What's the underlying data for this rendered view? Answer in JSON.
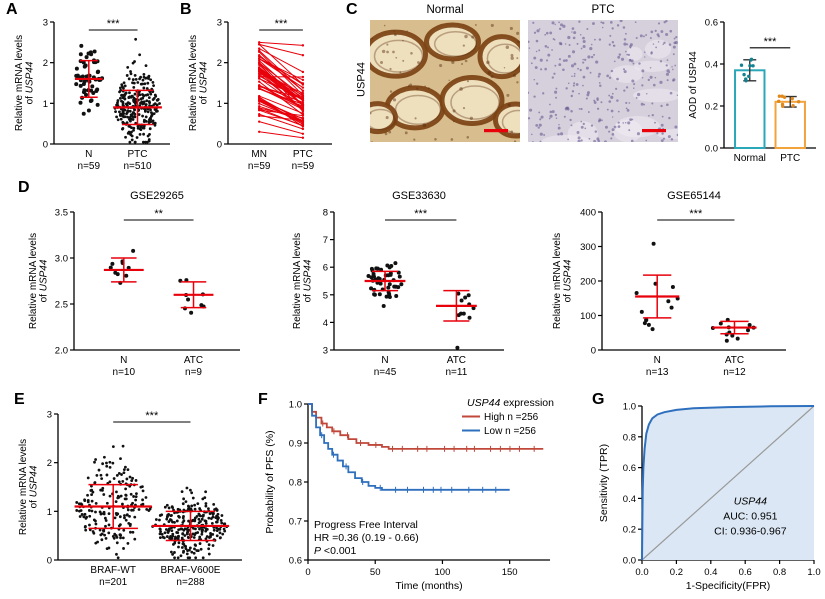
{
  "figure": {
    "panel_labels": {
      "A": "A",
      "B": "B",
      "C": "C",
      "D": "D",
      "E": "E",
      "F": "F",
      "G": "G"
    }
  },
  "panel_c": {
    "image_titles": [
      "Normal",
      "PTC"
    ],
    "row_label": "USP44"
  },
  "ihc": {
    "normal": {
      "bg": "#d8bd8f",
      "lumen": "#eedfbd",
      "stain": "#7c4213",
      "dark": "#55290a",
      "scalebar_color": "#e8000b"
    },
    "ptc": {
      "bg": "#d6cfdc",
      "nucleus": "#6f6495",
      "light": "#f0ebf3",
      "scalebar_color": "#e8000b"
    }
  },
  "chart_data": [
    {
      "id": "A",
      "type": "scatter",
      "seed": 7,
      "ylabel_lines": [
        [
          {
            "t": "Relative mRNA levels"
          }
        ],
        [
          {
            "t": "of "
          },
          {
            "t": "USP44",
            "i": true
          }
        ]
      ],
      "ylim": [
        0,
        3
      ],
      "ytick_values": [
        0,
        1,
        2,
        3
      ],
      "ytick_labels": [
        "0",
        "1",
        "2",
        "3"
      ],
      "significance": "***",
      "dot_color": "#111111",
      "error_color": "#e8000b",
      "groups": [
        {
          "name": "N",
          "n_label": "n=59",
          "mean": 1.6,
          "sd": 0.45,
          "count": 59
        },
        {
          "name": "PTC",
          "n_label": "n=510",
          "mean": 0.9,
          "sd": 0.42,
          "count": 510
        }
      ]
    },
    {
      "id": "B",
      "type": "paired",
      "seed": 11,
      "ylabel_lines": [
        [
          {
            "t": "Relative mRNA levels"
          }
        ],
        [
          {
            "t": "of "
          },
          {
            "t": "USP44",
            "i": true
          }
        ]
      ],
      "ylim": [
        0,
        3
      ],
      "ytick_values": [
        0,
        1,
        2,
        3
      ],
      "ytick_labels": [
        "0",
        "1",
        "2",
        "3"
      ],
      "significance": "***",
      "line_color": "#e8000b",
      "categories": [
        "MN",
        "PTC"
      ],
      "n_labels": [
        "n=59",
        "n=59"
      ],
      "pair_count": 59,
      "mean_start": 1.55,
      "mean_end": 0.95
    },
    {
      "id": "Cbar",
      "type": "bar",
      "seed": 13,
      "ylabel_lines": [
        [
          {
            "t": "AOD of USP44"
          }
        ]
      ],
      "ylim": [
        0,
        0.6
      ],
      "ytick_values": [
        0,
        0.2,
        0.4,
        0.6
      ],
      "ytick_labels": [
        "0.0",
        "0.2",
        "0.4",
        "0.6"
      ],
      "significance": "***",
      "categories": [
        "Normal",
        "PTC"
      ],
      "values": [
        0.37,
        0.22
      ],
      "errors": [
        0.05,
        0.025
      ],
      "bar_colors": [
        "#2aa7b8",
        "#f2a33c"
      ],
      "dot_colors": [
        "#15808f",
        "#e08a1e"
      ],
      "dots_per_bar": 9
    },
    {
      "id": "D1",
      "type": "scatter",
      "seed": 17,
      "title": "GSE29265",
      "ylabel_lines": [
        [
          {
            "t": "Relative mRNA levels"
          }
        ],
        [
          {
            "t": "of "
          },
          {
            "t": "USP44",
            "i": true
          }
        ]
      ],
      "ylim": [
        2.0,
        3.5
      ],
      "ytick_values": [
        2.0,
        2.5,
        3.0,
        3.5
      ],
      "ytick_labels": [
        "2.0",
        "2.5",
        "3.0",
        "3.5"
      ],
      "significance": "**",
      "dot_color": "#111111",
      "error_color": "#e8000b",
      "groups": [
        {
          "name": "N",
          "n_label": "n=10",
          "mean": 2.87,
          "sd": 0.13,
          "count": 10
        },
        {
          "name": "ATC",
          "n_label": "n=9",
          "mean": 2.6,
          "sd": 0.14,
          "count": 9
        }
      ]
    },
    {
      "id": "D2",
      "type": "scatter",
      "seed": 29,
      "title": "GSE33630",
      "ylabel_lines": [
        [
          {
            "t": "Relative mRNA levels"
          }
        ],
        [
          {
            "t": "of "
          },
          {
            "t": "USP44",
            "i": true
          }
        ]
      ],
      "ylim": [
        3,
        8
      ],
      "ytick_values": [
        3,
        4,
        5,
        6,
        7,
        8
      ],
      "ytick_labels": [
        "3",
        "4",
        "5",
        "6",
        "7",
        "8"
      ],
      "significance": "***",
      "dot_color": "#111111",
      "error_color": "#e8000b",
      "groups": [
        {
          "name": "N",
          "n_label": "n=45",
          "mean": 5.5,
          "sd": 0.35,
          "count": 45
        },
        {
          "name": "ATC",
          "n_label": "n=11",
          "mean": 4.6,
          "sd": 0.55,
          "count": 11
        }
      ]
    },
    {
      "id": "D3",
      "type": "scatter",
      "seed": 37,
      "title": "GSE65144",
      "ylabel_lines": [
        [
          {
            "t": "Relative mRNA levels"
          }
        ],
        [
          {
            "t": "of "
          },
          {
            "t": "USP44",
            "i": true
          }
        ]
      ],
      "ylim": [
        0,
        400
      ],
      "ytick_values": [
        0,
        100,
        200,
        300,
        400
      ],
      "ytick_labels": [
        "0",
        "100",
        "200",
        "300",
        "400"
      ],
      "significance": "***",
      "dot_color": "#111111",
      "error_color": "#e8000b",
      "groups": [
        {
          "name": "N",
          "n_label": "n=13",
          "mean": 155,
          "sd": 62,
          "count": 13
        },
        {
          "name": "ATC",
          "n_label": "n=12",
          "mean": 65,
          "sd": 18,
          "count": 12
        }
      ]
    },
    {
      "id": "E",
      "type": "scatter",
      "seed": 19,
      "ylabel_lines": [
        [
          {
            "t": "Relative mRNA levels"
          }
        ],
        [
          {
            "t": "of "
          },
          {
            "t": "USP44",
            "i": true
          }
        ]
      ],
      "ylim": [
        0,
        3
      ],
      "ytick_values": [
        0,
        1,
        2,
        3
      ],
      "ytick_labels": [
        "0",
        "1",
        "2",
        "3"
      ],
      "significance": "***",
      "dot_color": "#111111",
      "error_color": "#e8000b",
      "groups": [
        {
          "name": "BRAF-WT",
          "n_label": "n=201",
          "mean": 1.1,
          "sd": 0.45,
          "count": 201
        },
        {
          "name": "BRAF-V600E",
          "n_label": "n=288",
          "mean": 0.7,
          "sd": 0.3,
          "count": 288
        }
      ]
    },
    {
      "id": "F",
      "type": "km",
      "seed": 23,
      "legend_title": [
        {
          "t": "USP44",
          "i": true
        },
        {
          "t": " expression"
        }
      ],
      "ylabel_lines": [
        [
          {
            "t": "Probability of PFS (%)"
          }
        ]
      ],
      "xlabel": "Time (months)",
      "xlim": [
        0,
        180
      ],
      "xtick_values": [
        0,
        50,
        100,
        150
      ],
      "xtick_labels": [
        "0",
        "50",
        "100",
        "150"
      ],
      "ylim": [
        0.6,
        1.0
      ],
      "ytick_values": [
        0.6,
        0.7,
        0.8,
        0.9,
        1.0
      ],
      "ytick_labels": [
        "0.6",
        "0.7",
        "0.8",
        "0.9",
        "1.0"
      ],
      "series": [
        {
          "name": "High",
          "n_label": "n =256",
          "color": "#c0483a",
          "points": [
            [
              0,
              1.0
            ],
            [
              3,
              0.98
            ],
            [
              6,
              0.965
            ],
            [
              10,
              0.95
            ],
            [
              14,
              0.94
            ],
            [
              18,
              0.93
            ],
            [
              24,
              0.92
            ],
            [
              30,
              0.91
            ],
            [
              36,
              0.9
            ],
            [
              45,
              0.895
            ],
            [
              55,
              0.89
            ],
            [
              60,
              0.885
            ],
            [
              175,
              0.885
            ]
          ]
        },
        {
          "name": "Low",
          "n_label": "n =256",
          "color": "#2e6fbe",
          "points": [
            [
              0,
              1.0
            ],
            [
              3,
              0.97
            ],
            [
              6,
              0.94
            ],
            [
              9,
              0.92
            ],
            [
              12,
              0.9
            ],
            [
              15,
              0.885
            ],
            [
              18,
              0.87
            ],
            [
              22,
              0.855
            ],
            [
              26,
              0.84
            ],
            [
              30,
              0.825
            ],
            [
              35,
              0.81
            ],
            [
              40,
              0.8
            ],
            [
              45,
              0.79
            ],
            [
              50,
              0.785
            ],
            [
              55,
              0.78
            ],
            [
              150,
              0.78
            ]
          ]
        }
      ],
      "annotation": [
        [
          {
            "t": "Progress Free Interval"
          }
        ],
        [
          {
            "t": "HR =0.36 (0.19 - 0.66)"
          }
        ],
        [
          {
            "t": "P",
            "i": true
          },
          {
            "t": " <0.001"
          }
        ]
      ]
    },
    {
      "id": "G",
      "type": "roc",
      "ylabel_lines": [
        [
          {
            "t": "Sensitivity (TPR)"
          }
        ]
      ],
      "xlabel": "1-Specificity(FPR)",
      "xlim": [
        0,
        1
      ],
      "ylim": [
        0,
        1
      ],
      "xtick_values": [
        0,
        0.2,
        0.4,
        0.6,
        0.8,
        1.0
      ],
      "xtick_labels": [
        "0.0",
        "0.2",
        "0.4",
        "0.6",
        "0.8",
        "1.0"
      ],
      "ytick_values": [
        0,
        0.2,
        0.4,
        0.6,
        0.8,
        1.0
      ],
      "ytick_labels": [
        "0.0",
        "0.2",
        "0.4",
        "0.6",
        "0.8",
        "1.0"
      ],
      "curve_color": "#2e6fbe",
      "fill_color": "#dbe7f4",
      "diagonal_color": "#9a9a9a",
      "points": [
        [
          0,
          0
        ],
        [
          0.004,
          0.45
        ],
        [
          0.008,
          0.6
        ],
        [
          0.015,
          0.72
        ],
        [
          0.025,
          0.82
        ],
        [
          0.04,
          0.88
        ],
        [
          0.06,
          0.92
        ],
        [
          0.09,
          0.945
        ],
        [
          0.13,
          0.96
        ],
        [
          0.2,
          0.975
        ],
        [
          0.3,
          0.985
        ],
        [
          0.5,
          0.993
        ],
        [
          0.75,
          0.998
        ],
        [
          1,
          1
        ]
      ],
      "annotation": [
        [
          {
            "t": "USP44",
            "i": true
          }
        ],
        [
          {
            "t": "AUC: 0.951"
          }
        ],
        [
          {
            "t": "CI: 0.936-0.967"
          }
        ]
      ]
    }
  ]
}
